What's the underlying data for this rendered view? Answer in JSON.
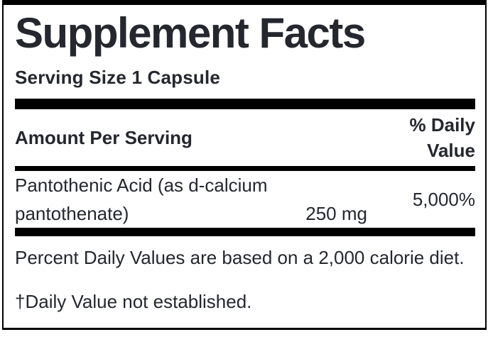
{
  "panel": {
    "title": "Supplement Facts",
    "serving_size": "Serving Size 1 Capsule",
    "header": {
      "amount_label": "Amount Per Serving",
      "daily_value_label": "% Daily Value"
    },
    "rows": [
      {
        "name": "Pantothenic Acid (as d-calcium pantothenate)",
        "name_lines": [
          "Pantothenic Acid (as d-calcium",
          "pantothenate)"
        ],
        "amount": "250 mg",
        "daily_value": "5,000%"
      }
    ],
    "footnotes": [
      "Percent Daily Values are based on a 2,000 calorie diet.",
      "†Daily Value not established."
    ],
    "colors": {
      "text": "#24272e",
      "rule": "#000000",
      "background": "#ffffff"
    }
  }
}
